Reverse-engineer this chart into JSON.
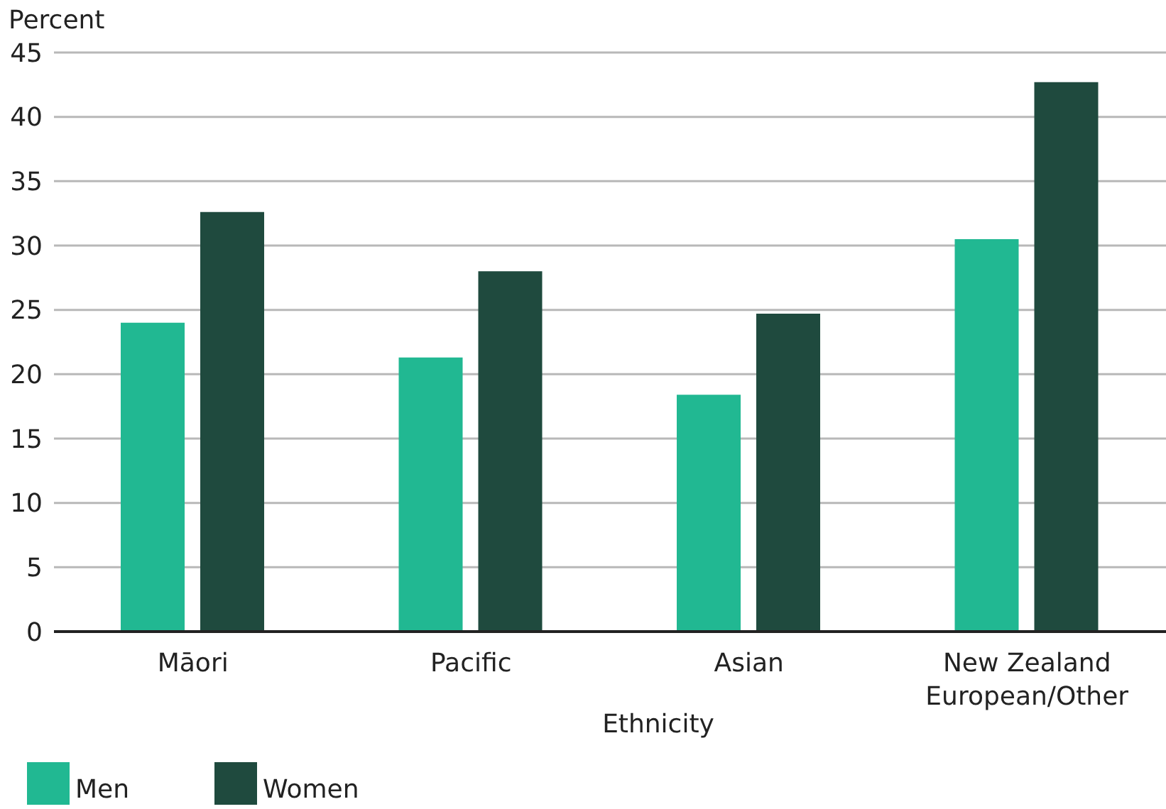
{
  "chart_data": {
    "type": "bar",
    "ylabel": "Percent",
    "xlabel": "Ethnicity",
    "categories": [
      "Māori",
      "Pacific",
      "Asian",
      "New Zealand European/Other"
    ],
    "series": [
      {
        "name": "Men",
        "color": "#21b892",
        "values": [
          24.0,
          21.3,
          18.4,
          30.5
        ]
      },
      {
        "name": "Women",
        "color": "#1f4a3e",
        "values": [
          32.6,
          28.0,
          24.7,
          42.7
        ]
      }
    ],
    "ylim": [
      0,
      45
    ],
    "yticks": [
      0,
      5,
      10,
      15,
      20,
      25,
      30,
      35,
      40,
      45
    ],
    "grid": "y",
    "legend": "bottom left"
  }
}
